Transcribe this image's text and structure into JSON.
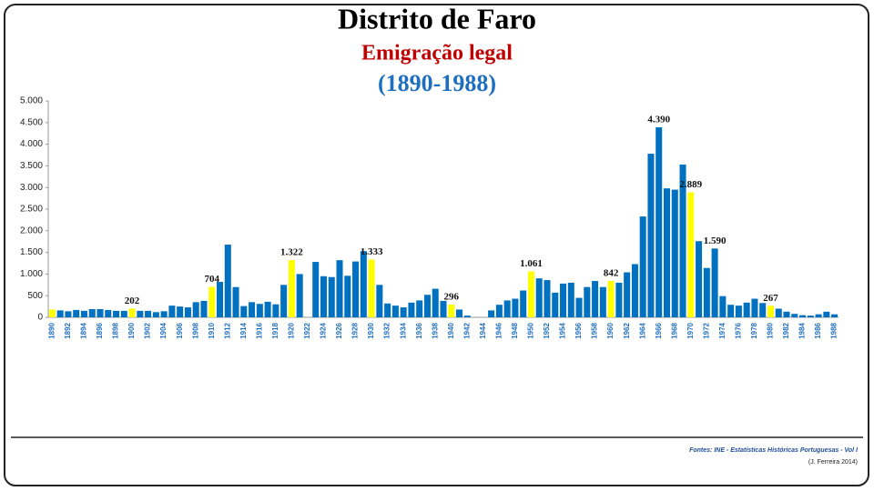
{
  "chart_data": {
    "type": "bar",
    "title": "Distrito de Faro",
    "subtitle": "Emigração legal",
    "date_range": "(1890-1988)",
    "source": "Fontes: INE - Estatísticas Históricas Portuguesas - Vol I",
    "credit": "(J. Ferreira 2014)",
    "categories": [
      "1890",
      null,
      "1892",
      null,
      "1894",
      null,
      "1896",
      null,
      "1898",
      null,
      "1900",
      null,
      "1902",
      null,
      "1904",
      null,
      "1906",
      null,
      "1908",
      null,
      "1910",
      null,
      "1912",
      null,
      "1914",
      null,
      "1916",
      null,
      "1918",
      null,
      "1920",
      null,
      "1922",
      null,
      "1924",
      null,
      "1926",
      null,
      "1928",
      null,
      "1930",
      null,
      "1932",
      null,
      "1934",
      null,
      "1936",
      null,
      "1938",
      null,
      "1940",
      null,
      "1942",
      null,
      "1944",
      null,
      "1946",
      null,
      "1948",
      null,
      "1950",
      null,
      "1952",
      null,
      "1954",
      null,
      "1956",
      null,
      "1958",
      null,
      "1960",
      null,
      "1962",
      null,
      "1964",
      null,
      "1966",
      null,
      "1968",
      null,
      "1970",
      null,
      "1972",
      null,
      "1974",
      null,
      "1976",
      null,
      "1978",
      null,
      "1980",
      null,
      "1982",
      null,
      "1984",
      null,
      "1986",
      null,
      "1988"
    ],
    "values": [
      180,
      160,
      140,
      170,
      150,
      190,
      190,
      170,
      150,
      150,
      202,
      150,
      150,
      120,
      140,
      270,
      250,
      230,
      350,
      380,
      704,
      820,
      1680,
      700,
      260,
      350,
      310,
      360,
      300,
      750,
      1322,
      1000,
      null,
      1280,
      950,
      930,
      1320,
      960,
      1290,
      1530,
      1333,
      750,
      320,
      270,
      230,
      340,
      390,
      520,
      660,
      380,
      296,
      180,
      40,
      null,
      null,
      160,
      290,
      390,
      430,
      620,
      1061,
      900,
      860,
      570,
      780,
      800,
      450,
      700,
      840,
      700,
      842,
      800,
      1040,
      1230,
      2330,
      3780,
      4390,
      2980,
      2950,
      3530,
      2889,
      1760,
      1140,
      1590,
      490,
      290,
      270,
      340,
      430,
      330,
      267,
      200,
      130,
      80,
      50,
      40,
      70,
      130,
      70
    ],
    "value_labels": [
      null,
      null,
      null,
      null,
      null,
      null,
      null,
      null,
      null,
      null,
      "202",
      null,
      null,
      null,
      null,
      null,
      null,
      null,
      null,
      null,
      "704",
      null,
      null,
      null,
      null,
      null,
      null,
      null,
      null,
      null,
      "1.322",
      null,
      null,
      null,
      null,
      null,
      null,
      null,
      null,
      null,
      "1.333",
      null,
      null,
      null,
      null,
      null,
      null,
      null,
      null,
      null,
      "296",
      null,
      null,
      null,
      null,
      null,
      null,
      null,
      null,
      null,
      "1.061",
      null,
      null,
      null,
      null,
      null,
      null,
      null,
      null,
      null,
      "842",
      null,
      null,
      null,
      null,
      null,
      "4.390",
      null,
      null,
      null,
      "2.889",
      null,
      null,
      "1.590",
      null,
      null,
      null,
      null,
      null,
      null,
      "267",
      null,
      null,
      null,
      null,
      null,
      null,
      null,
      null
    ],
    "colors": [
      "#ffff00",
      "#0070c0",
      "#0070c0",
      "#0070c0",
      "#0070c0",
      "#0070c0",
      "#0070c0",
      "#0070c0",
      "#0070c0",
      "#0070c0",
      "#ffff00",
      "#0070c0",
      "#0070c0",
      "#0070c0",
      "#0070c0",
      "#0070c0",
      "#0070c0",
      "#0070c0",
      "#0070c0",
      "#0070c0",
      "#ffff00",
      "#0070c0",
      "#0070c0",
      "#0070c0",
      "#0070c0",
      "#0070c0",
      "#0070c0",
      "#0070c0",
      "#0070c0",
      "#0070c0",
      "#ffff00",
      "#0070c0",
      "#0070c0",
      "#0070c0",
      "#0070c0",
      "#0070c0",
      "#0070c0",
      "#0070c0",
      "#0070c0",
      "#0070c0",
      "#ffff00",
      "#0070c0",
      "#0070c0",
      "#0070c0",
      "#0070c0",
      "#0070c0",
      "#0070c0",
      "#0070c0",
      "#0070c0",
      "#0070c0",
      "#ffff00",
      "#0070c0",
      "#0070c0",
      "#0070c0",
      "#0070c0",
      "#0070c0",
      "#0070c0",
      "#0070c0",
      "#0070c0",
      "#0070c0",
      "#ffff00",
      "#0070c0",
      "#0070c0",
      "#0070c0",
      "#0070c0",
      "#0070c0",
      "#0070c0",
      "#0070c0",
      "#0070c0",
      "#0070c0",
      "#ffff00",
      "#0070c0",
      "#0070c0",
      "#0070c0",
      "#0070c0",
      "#0070c0",
      "#0070c0",
      "#0070c0",
      "#0070c0",
      "#0070c0",
      "#ffff00",
      "#0070c0",
      "#0070c0",
      "#0070c0",
      "#0070c0",
      "#0070c0",
      "#0070c0",
      "#0070c0",
      "#0070c0",
      "#0070c0",
      "#ffff00",
      "#0070c0",
      "#0070c0",
      "#0070c0",
      "#0070c0",
      "#0070c0",
      "#0070c0",
      "#0070c0",
      "#0070c0"
    ],
    "ylim": [
      0,
      5000
    ],
    "yticks": [
      0,
      500,
      {
        "value": 1000,
        "label": "1.000"
      },
      {
        "value": 1500,
        "label": "1.500"
      },
      {
        "value": 2000,
        "label": "2.000"
      },
      {
        "value": 2500,
        "label": "2.500"
      },
      {
        "value": 3000,
        "label": "3.000"
      },
      {
        "value": 3500,
        "label": "3.500"
      },
      {
        "value": 4000,
        "label": "4.000"
      },
      {
        "value": 4500,
        "label": "4.500"
      },
      {
        "value": 5000,
        "label": "5.000"
      }
    ],
    "grid": false
  }
}
